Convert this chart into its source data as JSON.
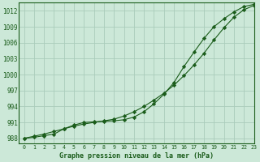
{
  "title": "Graphe pression niveau de la mer (hPa)",
  "background_color": "#cce8d8",
  "grid_color": "#aaccbb",
  "line_color": "#1a5c1a",
  "xlim": [
    -0.5,
    23
  ],
  "ylim": [
    987,
    1013.5
  ],
  "yticks": [
    988,
    991,
    994,
    997,
    1000,
    1003,
    1006,
    1009,
    1012
  ],
  "xticks": [
    0,
    1,
    2,
    3,
    4,
    5,
    6,
    7,
    8,
    9,
    10,
    11,
    12,
    13,
    14,
    15,
    16,
    17,
    18,
    19,
    20,
    21,
    22,
    23
  ],
  "series1_x": [
    0,
    1,
    2,
    3,
    4,
    5,
    6,
    7,
    8,
    9,
    10,
    11,
    12,
    13,
    14,
    15,
    16,
    17,
    18,
    19,
    20,
    21,
    22,
    23
  ],
  "series1_y": [
    988.0,
    988.4,
    988.8,
    989.3,
    989.8,
    990.3,
    990.7,
    991.0,
    991.3,
    991.6,
    992.2,
    993.0,
    994.0,
    995.2,
    996.5,
    998.0,
    999.8,
    1001.8,
    1004.0,
    1006.5,
    1008.8,
    1010.8,
    1012.2,
    1013.0
  ],
  "series2_x": [
    0,
    1,
    2,
    3,
    4,
    5,
    6,
    7,
    8,
    9,
    10,
    11,
    12,
    13,
    14,
    15,
    16,
    17,
    18,
    19,
    20,
    21,
    22,
    23
  ],
  "series2_y": [
    988.0,
    988.2,
    988.5,
    988.8,
    989.8,
    990.5,
    991.0,
    991.1,
    991.2,
    991.3,
    991.5,
    992.0,
    993.0,
    994.5,
    996.3,
    998.5,
    1001.5,
    1004.2,
    1006.8,
    1009.0,
    1010.5,
    1011.8,
    1012.8,
    1013.2
  ]
}
